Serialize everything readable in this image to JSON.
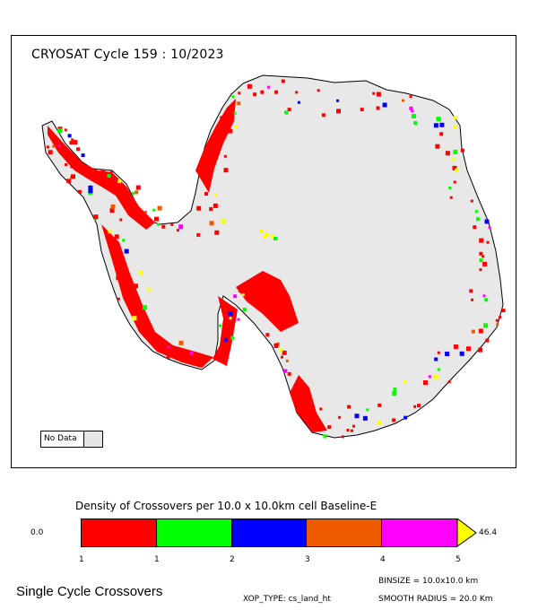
{
  "map": {
    "title": "CRYOSAT Cycle 159 : 10/2023",
    "no_data_label": "No Data",
    "no_data_color": "#e6e6e6",
    "land_color": "#e8e8e8",
    "coastline_color": "#000000"
  },
  "legend": {
    "title": "Density of Crossovers per  10.0 x  10.0km cell Baseline-E",
    "min_label": "0.0",
    "max_label": "46.4",
    "colors": [
      "#ff0000",
      "#00ff00",
      "#0000ff",
      "#ee5a00",
      "#ff00ff"
    ],
    "overflow_color": "#ffff00",
    "tick_labels": [
      "1",
      "1",
      "2",
      "3",
      "4",
      "5"
    ]
  },
  "footer": {
    "title": "Single Cycle Crossovers",
    "binsize": "BINSIZE = 10.0x10.0 km",
    "xop_type": "XOP_TYPE: cs_land_ht",
    "smooth_radius": "SMOOTH RADIUS =  20.0 Km"
  }
}
